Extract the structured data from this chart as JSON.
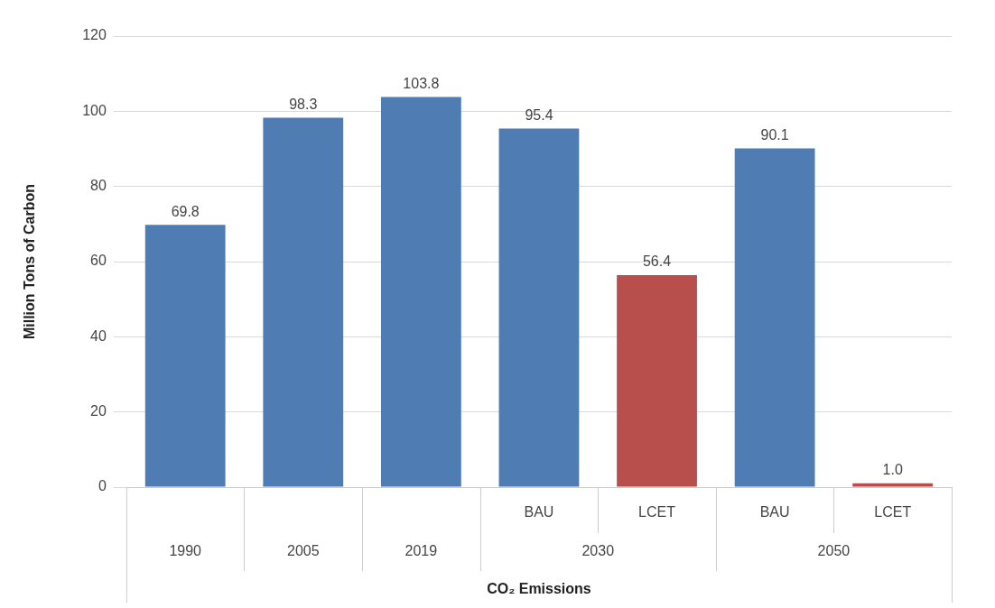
{
  "chart_data": {
    "type": "bar",
    "xlabel": "CO₂ Emissions",
    "ylabel": "Million Tons of Carbon",
    "categories": [
      "1990",
      "2005",
      "2019",
      "BAU",
      "LCET",
      "BAU",
      "LCET"
    ],
    "values": [
      69.8,
      98.3,
      103.8,
      95.4,
      56.4,
      90.1,
      1.0
    ],
    "value_labels": [
      "69.8",
      "98.3",
      "103.8",
      "95.4",
      "56.4",
      "90.1",
      "1.0"
    ],
    "colors": [
      "#4f7db3",
      "#4f7db3",
      "#4f7db3",
      "#4f7db3",
      "#b94f4d",
      "#4f7db3",
      "#b94f4d"
    ],
    "annotations": [
      "2030",
      "2050"
    ],
    "ylim": [
      0,
      120
    ],
    "yticks": [
      0,
      20,
      40,
      60,
      80,
      100,
      120
    ],
    "grid": "y"
  }
}
